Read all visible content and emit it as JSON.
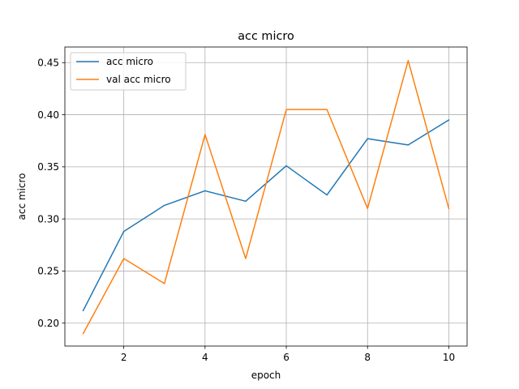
{
  "chart_data": {
    "type": "line",
    "title": "acc micro",
    "xlabel": "epoch",
    "ylabel": "acc micro",
    "x": [
      1,
      2,
      3,
      4,
      5,
      6,
      7,
      8,
      9,
      10
    ],
    "xlim": [
      0.55,
      10.45
    ],
    "ylim": [
      0.178,
      0.465
    ],
    "xticks": [
      2,
      4,
      6,
      8,
      10
    ],
    "yticks": [
      0.2,
      0.25,
      0.3,
      0.35,
      0.4,
      0.45
    ],
    "ytick_labels": [
      "0.20",
      "0.25",
      "0.30",
      "0.35",
      "0.40",
      "0.45"
    ],
    "grid": true,
    "legend_position": "upper-left",
    "series": [
      {
        "name": "acc micro",
        "color": "#1f77b4",
        "values": [
          0.212,
          0.288,
          0.313,
          0.327,
          0.317,
          0.351,
          0.323,
          0.377,
          0.371,
          0.395
        ]
      },
      {
        "name": "val acc micro",
        "color": "#ff7f0e",
        "values": [
          0.19,
          0.262,
          0.238,
          0.381,
          0.262,
          0.405,
          0.405,
          0.31,
          0.452,
          0.31
        ]
      }
    ]
  }
}
